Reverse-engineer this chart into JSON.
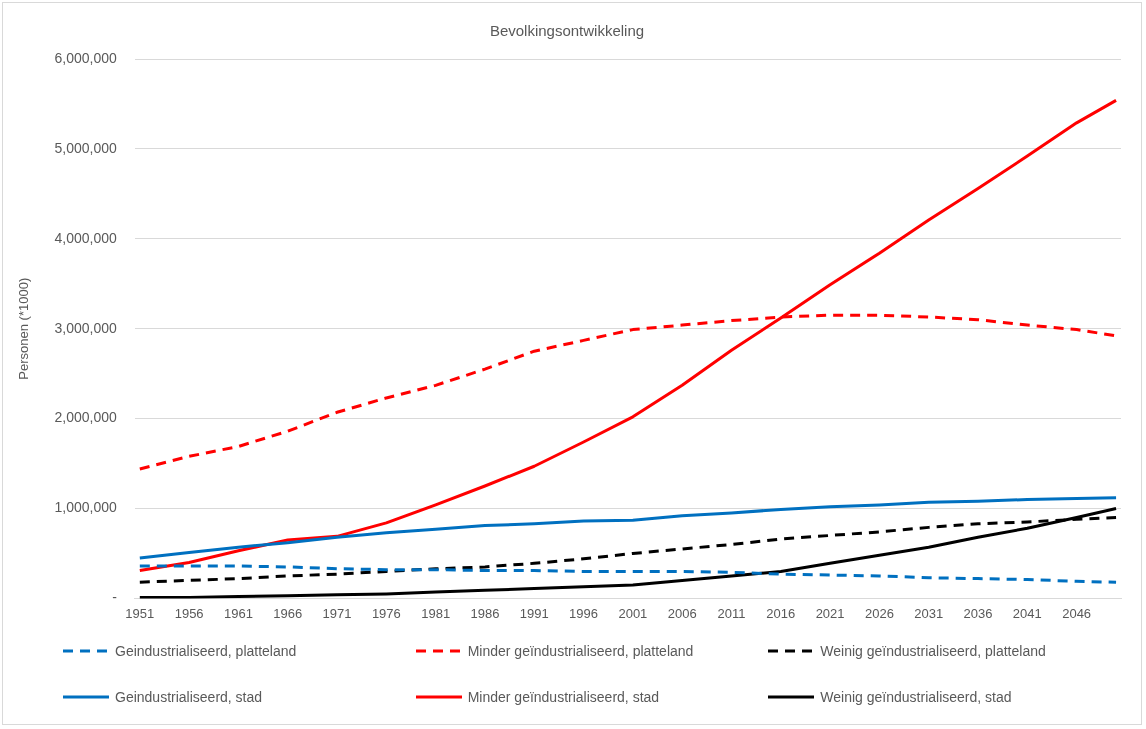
{
  "chart_data": {
    "type": "line",
    "title": "Bevolkingsontwikkeling",
    "ylabel": "Personen (*1000)",
    "x": [
      1951,
      1956,
      1961,
      1966,
      1971,
      1976,
      1981,
      1986,
      1991,
      1996,
      2001,
      2006,
      2011,
      2016,
      2021,
      2026,
      2031,
      2036,
      2041,
      2046,
      2050
    ],
    "xlim": [
      1950.5,
      2050.5
    ],
    "xticks": [
      1951,
      1956,
      1961,
      1966,
      1971,
      1976,
      1981,
      1986,
      1991,
      1996,
      2001,
      2006,
      2011,
      2016,
      2021,
      2026,
      2031,
      2036,
      2041,
      2046
    ],
    "ylim": [
      0,
      6000000
    ],
    "yticks": [
      {
        "value": 0,
        "label": "-"
      },
      {
        "value": 1000000,
        "label": "1,000,000"
      },
      {
        "value": 2000000,
        "label": "2,000,000"
      },
      {
        "value": 3000000,
        "label": "3,000,000"
      },
      {
        "value": 4000000,
        "label": "4,000,000"
      },
      {
        "value": 5000000,
        "label": "5,000,000"
      },
      {
        "value": 6000000,
        "label": "6,000,000"
      }
    ],
    "grid": "y",
    "legend": "bottom",
    "marker": "none",
    "series": [
      {
        "name": "Geindustrialiseerd, platteland",
        "color": "#0070c0",
        "line_style": "dashed",
        "values": [
          360000,
          360000,
          360000,
          350000,
          330000,
          320000,
          320000,
          310000,
          310000,
          300000,
          300000,
          300000,
          290000,
          270000,
          260000,
          250000,
          230000,
          220000,
          210000,
          190000,
          180000
        ]
      },
      {
        "name": "Minder geïndustrialiseerd, platteland",
        "color": "#ff0000",
        "line_style": "dashed",
        "values": [
          1440000,
          1580000,
          1690000,
          1860000,
          2070000,
          2230000,
          2370000,
          2550000,
          2750000,
          2870000,
          2990000,
          3040000,
          3090000,
          3130000,
          3150000,
          3150000,
          3130000,
          3100000,
          3040000,
          2990000,
          2920000
        ]
      },
      {
        "name": "Weinig geïndustrialiseerd, platteland",
        "color": "#000000",
        "line_style": "dashed",
        "values": [
          180000,
          200000,
          220000,
          250000,
          270000,
          300000,
          330000,
          350000,
          390000,
          440000,
          500000,
          550000,
          600000,
          660000,
          700000,
          740000,
          790000,
          830000,
          850000,
          880000,
          900000
        ]
      },
      {
        "name": "Geindustrialiseerd, stad",
        "color": "#0070c0",
        "line_style": "solid",
        "values": [
          450000,
          510000,
          570000,
          620000,
          680000,
          730000,
          770000,
          810000,
          830000,
          860000,
          870000,
          920000,
          950000,
          990000,
          1020000,
          1040000,
          1070000,
          1080000,
          1100000,
          1110000,
          1120000
        ]
      },
      {
        "name": "Minder geïndustrialiseerd, stad",
        "color": "#ff0000",
        "line_style": "solid",
        "values": [
          310000,
          400000,
          530000,
          650000,
          690000,
          840000,
          1040000,
          1250000,
          1470000,
          1740000,
          2020000,
          2370000,
          2760000,
          3120000,
          3490000,
          3840000,
          4210000,
          4560000,
          4920000,
          5290000,
          5540000
        ]
      },
      {
        "name": "Weinig geïndustrialiseerd, stad",
        "color": "#000000",
        "line_style": "solid",
        "values": [
          10000,
          10000,
          20000,
          30000,
          40000,
          50000,
          70000,
          90000,
          110000,
          130000,
          150000,
          200000,
          250000,
          300000,
          390000,
          480000,
          570000,
          680000,
          780000,
          900000,
          1000000
        ]
      }
    ]
  }
}
